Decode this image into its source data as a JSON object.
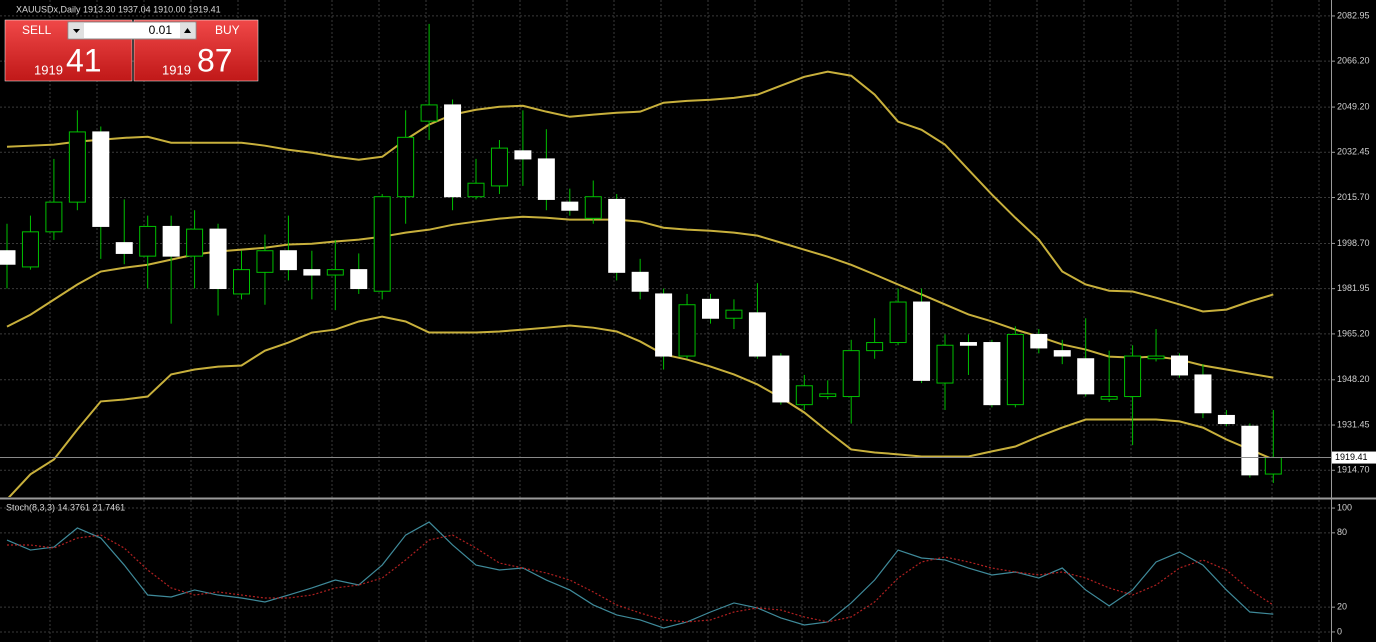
{
  "header": {
    "title": "XAUUSDx,Daily  1913.30 1937.04 1910.00 1919.41"
  },
  "trade_panel": {
    "sell": "SELL",
    "buy": "BUY",
    "lot": "0.01",
    "bid": {
      "figure": "1919",
      "pips": "41"
    },
    "ask": {
      "figure": "1919",
      "pips": "87"
    }
  },
  "chart_data": [
    {
      "type": "candlestick",
      "up_color": "#00c000",
      "down_color": "#ffffff",
      "open": [
        1996,
        1990,
        2003,
        2014,
        2040,
        1999,
        1994,
        2005,
        1994,
        2004,
        1980,
        1988,
        1996,
        1989,
        1987,
        1989,
        1981,
        2016,
        2044,
        2050,
        2016,
        2020,
        2033,
        2030,
        2014,
        2008,
        2015,
        1988,
        1980,
        1957,
        1978,
        1971,
        1973,
        1957,
        1939,
        1942,
        1942,
        1959,
        1962,
        1977,
        1947,
        1962,
        1962,
        1939,
        1965,
        1959,
        1956,
        1941,
        1942,
        1956,
        1957,
        1950,
        1935,
        1931,
        1913.3
      ],
      "high": [
        2006,
        2009,
        2030,
        2048,
        2042,
        2015,
        2009,
        2009,
        2011,
        2006,
        1996,
        2002,
        2009,
        1996,
        2000,
        1995,
        2017,
        2048,
        2080,
        2052,
        2030,
        2037,
        2048,
        2041,
        2019,
        2022,
        2017,
        1993,
        1982,
        1980,
        1980,
        1978,
        1984,
        1958,
        1950,
        1948,
        1963,
        1971,
        1982,
        1982,
        1965,
        1965,
        1963,
        1968,
        1967,
        1963,
        1971,
        1959,
        1961,
        1967,
        1958,
        1954,
        1937,
        1932,
        1937.04
      ],
      "low": [
        1982,
        1989,
        2000,
        2011,
        1993,
        1991,
        1982,
        1969,
        1982,
        1972,
        1978,
        1976,
        1985,
        1978,
        1974,
        1980,
        1978,
        2006,
        2037,
        2011,
        2015,
        2017,
        2020,
        2011,
        2009,
        2006,
        1985,
        1978,
        1952,
        1956,
        1969,
        1967,
        1956,
        1939,
        1937,
        1941,
        1932,
        1956,
        1961,
        1947,
        1937,
        1950,
        1938,
        1938,
        1958,
        1954,
        1942,
        1940,
        1924,
        1955,
        1949,
        1934,
        1931,
        1912,
        1910.0
      ],
      "close": [
        1991,
        2003,
        2014,
        2040,
        2005,
        1995,
        2005,
        1994,
        2004,
        1982,
        1989,
        1996,
        1989,
        1987,
        1989,
        1982,
        2016,
        2038,
        2050,
        2016,
        2021,
        2034,
        2030,
        2015,
        2011,
        2016,
        1988,
        1981,
        1957,
        1976,
        1971,
        1974,
        1957,
        1940,
        1946,
        1943,
        1959,
        1962,
        1977,
        1948,
        1961,
        1961,
        1939,
        1965,
        1960,
        1957,
        1943,
        1942,
        1957,
        1957,
        1950,
        1936,
        1932,
        1913,
        1919.41
      ],
      "series": [
        {
          "color": "#c8b03c",
          "values": [
            2034.5,
            2034.9,
            2035.3,
            2036.4,
            2037.1,
            2037.8,
            2038.2,
            2036.0,
            2036.0,
            2036.0,
            2036.0,
            2034.9,
            2033.4,
            2032.3,
            2030.8,
            2029.7,
            2030.8,
            2037.1,
            2042.7,
            2046.4,
            2048.2,
            2049.3,
            2049.7,
            2047.5,
            2045.6,
            2046.4,
            2047.1,
            2047.5,
            2050.8,
            2051.5,
            2051.9,
            2052.6,
            2053.8,
            2057.1,
            2060.4,
            2062.3,
            2060.8,
            2053.8,
            2043.8,
            2040.8,
            2035.3,
            2026.0,
            2016.8,
            2008.2,
            2000.1,
            1988.3,
            1983.5,
            1981.2,
            1980.9,
            1978.6,
            1976.1,
            1973.5,
            1974.2,
            1977.2,
            1979.8
          ]
        },
        {
          "color": "#c8b03c",
          "values": [
            1967.9,
            1972.3,
            1977.9,
            1983.5,
            1988.3,
            1989.7,
            1990.8,
            1992.7,
            1994.6,
            1995.7,
            1996.4,
            1997.1,
            1998.3,
            1998.6,
            1999.4,
            2000.1,
            2001.2,
            2002.7,
            2003.8,
            2005.6,
            2006.8,
            2007.9,
            2008.6,
            2008.2,
            2007.5,
            2007.5,
            2007.5,
            2006.8,
            2004.5,
            2003.8,
            2003.4,
            2002.7,
            2001.6,
            1999.0,
            1996.4,
            1993.8,
            1990.8,
            1987.2,
            1983.5,
            1979.8,
            1976.1,
            1972.4,
            1969.8,
            1966.8,
            1964.2,
            1961.3,
            1959.4,
            1956.8,
            1956.4,
            1956.8,
            1955.7,
            1953.5,
            1952.0,
            1950.5,
            1949.0
          ]
        },
        {
          "color": "#c8b03c",
          "values": [
            1903.9,
            1913.2,
            1918.7,
            1929.8,
            1940.2,
            1940.9,
            1942.0,
            1950.2,
            1952.0,
            1953.1,
            1953.5,
            1959.0,
            1962.0,
            1965.7,
            1966.8,
            1969.8,
            1971.6,
            1969.8,
            1965.7,
            1965.7,
            1965.7,
            1966.1,
            1966.8,
            1967.5,
            1968.3,
            1967.5,
            1966.1,
            1962.4,
            1957.6,
            1955.7,
            1953.1,
            1950.2,
            1946.5,
            1941.6,
            1936.1,
            1929.1,
            1922.4,
            1921.3,
            1920.6,
            1919.8,
            1919.8,
            1919.8,
            1921.7,
            1923.5,
            1927.2,
            1930.5,
            1933.5,
            1933.5,
            1933.5,
            1933.5,
            1932.8,
            1930.5,
            1926.1,
            1922.4,
            1918.7
          ]
        }
      ],
      "current_price": 1919.41,
      "ylim": [
        1904.8,
        2087.0
      ],
      "yticks": [
        2082.95,
        {
          "value": 2066.2,
          "label": "2066.20"
        },
        {
          "value": 2049.2,
          "label": "2049.20"
        },
        2032.45,
        {
          "value": 2015.7,
          "label": "2015.70"
        },
        {
          "value": 1998.7,
          "label": "1998.70"
        },
        1981.95,
        {
          "value": 1965.2,
          "label": "1965.20"
        },
        {
          "value": 1948.2,
          "label": "1948.20"
        },
        1931.45,
        {
          "value": 1914.7,
          "label": "1914.70"
        }
      ],
      "grid": true
    },
    {
      "type": "line",
      "title": "Stoch(8,3,3) 14.3761 21.7461",
      "series": [
        {
          "color": "#3f8a9a",
          "dashed": false,
          "values": [
            74.2,
            66.1,
            68.5,
            83.9,
            75.8,
            54.0,
            29.8,
            28.2,
            33.9,
            29.8,
            27.4,
            24.2,
            29.8,
            35.5,
            41.9,
            37.9,
            54.0,
            78.2,
            88.7,
            70.2,
            54.0,
            50.0,
            51.6,
            41.9,
            33.9,
            21.8,
            13.7,
            9.7,
            3.2,
            8.1,
            16.1,
            23.4,
            19.4,
            11.3,
            5.6,
            8.1,
            23.4,
            41.9,
            66.1,
            59.7,
            58.1,
            51.6,
            46.0,
            48.4,
            43.5,
            51.6,
            33.9,
            21.0,
            33.9,
            56.5,
            64.5,
            54.0,
            33.9,
            16.1,
            14.3761
          ]
        },
        {
          "color": "#b02020",
          "dashed": true,
          "values": [
            70.2,
            70.2,
            67.7,
            75.8,
            78.2,
            67.7,
            50.0,
            35.5,
            29.8,
            32.3,
            29.8,
            27.4,
            27.4,
            29.8,
            35.5,
            37.9,
            43.5,
            58.1,
            74.2,
            78.2,
            67.7,
            55.6,
            51.6,
            47.6,
            41.9,
            32.3,
            21.8,
            15.3,
            9.7,
            8.1,
            9.7,
            16.1,
            19.4,
            17.7,
            12.1,
            8.1,
            12.1,
            24.2,
            43.5,
            56.5,
            60.5,
            56.5,
            51.6,
            48.4,
            46.0,
            48.4,
            43.5,
            35.5,
            29.8,
            37.9,
            51.6,
            58.1,
            50.0,
            33.9,
            21.7461
          ]
        }
      ],
      "ylim": [
        -6.5,
        106.5
      ],
      "yticks": [
        100,
        80,
        20,
        0
      ],
      "grid": true
    }
  ]
}
